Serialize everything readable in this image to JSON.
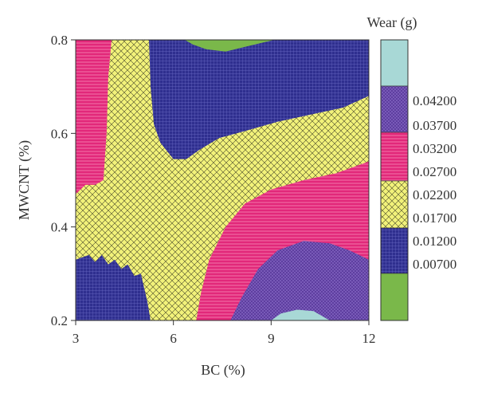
{
  "chart_data": {
    "type": "contour",
    "x": {
      "label": "BC (%)",
      "range": [
        3,
        12
      ],
      "ticks": [
        3,
        6,
        9,
        12
      ]
    },
    "y": {
      "label": "MWCNT (%)",
      "range": [
        0.2,
        0.8
      ],
      "ticks": [
        0.2,
        0.4,
        0.6,
        0.8
      ]
    },
    "colorbar": {
      "title": "Wear (g)",
      "position": "right",
      "boundaries": [
        "0.04200",
        "0.03700",
        "0.03200",
        "0.02700",
        "0.02200",
        "0.01700",
        "0.01200",
        "0.00700"
      ],
      "levels_top_to_bottom": [
        {
          "range": "> 0.04200",
          "color": "#a8d8d6",
          "pattern": "none"
        },
        {
          "range": "0.03700 - 0.04200",
          "color": "#5a3b9c",
          "pattern": "crosshatch-fine"
        },
        {
          "range": "0.02700 - 0.03200",
          "color": "#e2287a",
          "pattern": "crosshatch-fine"
        },
        {
          "range": "0.01700 - 0.02200",
          "color": "#f2f27a",
          "pattern": "diagonal-crosshatch"
        },
        {
          "range": "0.00700 - 0.01200",
          "color": "#2f2f8f",
          "pattern": "grid"
        },
        {
          "range": "< 0.00700",
          "color": "#7ab84a",
          "pattern": "none"
        }
      ]
    },
    "regions": [
      {
        "band": "< 0.00700",
        "color": "#7ab84a",
        "outline": [
          [
            6.35,
            0.8
          ],
          [
            7.0,
            0.78
          ],
          [
            8.4,
            0.79
          ],
          [
            9.0,
            0.8
          ]
        ]
      },
      {
        "band": "> 0.04200",
        "color": "#a8d8d6",
        "outline": [
          [
            9.0,
            0.2
          ],
          [
            9.4,
            0.22
          ],
          [
            10.2,
            0.22
          ],
          [
            10.8,
            0.2
          ]
        ]
      },
      {
        "band": "0.00700 - 0.01200",
        "color": "#2f2f8f",
        "outline": [
          [
            5.25,
            0.8
          ],
          [
            5.3,
            0.6
          ],
          [
            6.2,
            0.54
          ],
          [
            7.3,
            0.58
          ],
          [
            9.2,
            0.62
          ],
          [
            11.3,
            0.65
          ],
          [
            12,
            0.68
          ],
          [
            12,
            0.8
          ]
        ]
      },
      {
        "band": "0.01700 - 0.02200",
        "color": "#f2f27a",
        "outline": [
          [
            3,
            0.47
          ],
          [
            3.3,
            0.48
          ],
          [
            3.8,
            0.49
          ],
          [
            4.1,
            0.8
          ],
          [
            4.8,
            0.8
          ],
          [
            5.2,
            0.6
          ],
          [
            6.8,
            0.5
          ],
          [
            9.0,
            0.48
          ],
          [
            12,
            0.53
          ],
          [
            12,
            0.68
          ],
          [
            9.2,
            0.62
          ],
          [
            6.2,
            0.54
          ]
        ]
      },
      {
        "band": "0.02700 - 0.03200",
        "color": "#e2287a",
        "outline": [
          [
            3,
            0.8
          ],
          [
            4.1,
            0.8
          ],
          [
            3.8,
            0.49
          ],
          [
            3,
            0.47
          ]
        ]
      }
    ]
  }
}
